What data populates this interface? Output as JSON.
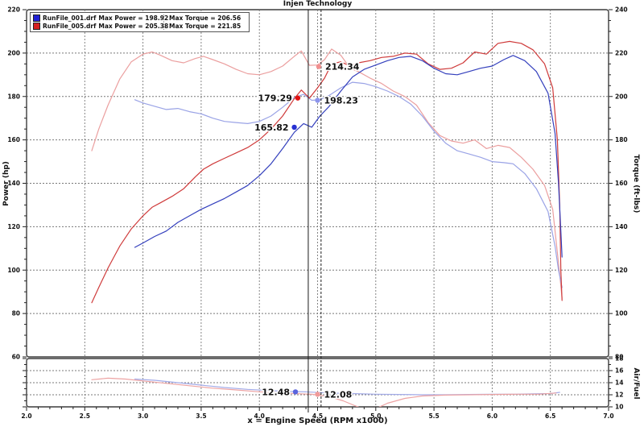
{
  "chart_data": {
    "type": "line",
    "title": "Injen Technology",
    "x_axis": {
      "title": "x = Engine Speed (RPM x1000)",
      "min": 2.0,
      "max": 7.0,
      "major": 0.5,
      "minor": 0.1
    },
    "main": {
      "left_axis": {
        "title": "Power (hp)",
        "min": 60,
        "max": 220,
        "major": 20,
        "minor": 5
      },
      "right_axis": {
        "title": "Torque (ft-lbs)",
        "min": 80,
        "max": 240,
        "major": 20,
        "minor": 5
      },
      "series": [
        {
          "name": "run2-torque-curve",
          "axis": "torque",
          "color": "#eb9f9f",
          "points": [
            [
              2.56,
              175
            ],
            [
              2.62,
              185
            ],
            [
              2.7,
              196
            ],
            [
              2.8,
              208
            ],
            [
              2.9,
              216
            ],
            [
              3.0,
              219.5
            ],
            [
              3.08,
              220.5
            ],
            [
              3.15,
              219
            ],
            [
              3.25,
              216.5
            ],
            [
              3.35,
              215.5
            ],
            [
              3.45,
              217.5
            ],
            [
              3.52,
              218.5
            ],
            [
              3.6,
              217
            ],
            [
              3.7,
              215
            ],
            [
              3.8,
              212.5
            ],
            [
              3.9,
              210.5
            ],
            [
              4.0,
              210
            ],
            [
              4.1,
              211.5
            ],
            [
              4.2,
              214
            ],
            [
              4.3,
              218.5
            ],
            [
              4.36,
              221
            ],
            [
              4.43,
              214.34
            ],
            [
              4.5,
              214.5
            ],
            [
              4.56,
              217
            ],
            [
              4.62,
              221.85
            ],
            [
              4.7,
              219
            ],
            [
              4.78,
              213
            ],
            [
              4.85,
              211.5
            ],
            [
              4.95,
              208.5
            ],
            [
              5.05,
              206
            ],
            [
              5.15,
              202.5
            ],
            [
              5.25,
              200
            ],
            [
              5.35,
              196
            ],
            [
              5.45,
              188
            ],
            [
              5.55,
              182
            ],
            [
              5.65,
              179.5
            ],
            [
              5.75,
              178.5
            ],
            [
              5.85,
              180
            ],
            [
              5.95,
              176
            ],
            [
              6.05,
              177.5
            ],
            [
              6.15,
              176.5
            ],
            [
              6.25,
              172
            ],
            [
              6.35,
              166.5
            ],
            [
              6.45,
              159
            ],
            [
              6.52,
              148
            ],
            [
              6.56,
              128
            ],
            [
              6.58,
              118
            ],
            [
              6.6,
              107
            ]
          ]
        },
        {
          "name": "run1-torque-curve",
          "axis": "torque",
          "color": "#9aa3e6",
          "points": [
            [
              2.93,
              198.5
            ],
            [
              3.0,
              197
            ],
            [
              3.1,
              195.5
            ],
            [
              3.2,
              194
            ],
            [
              3.3,
              194.5
            ],
            [
              3.4,
              193
            ],
            [
              3.5,
              192
            ],
            [
              3.6,
              190
            ],
            [
              3.7,
              188.5
            ],
            [
              3.8,
              188
            ],
            [
              3.9,
              187.5
            ],
            [
              4.0,
              188.5
            ],
            [
              4.1,
              191
            ],
            [
              4.2,
              195
            ],
            [
              4.3,
              199.5
            ],
            [
              4.38,
              201
            ],
            [
              4.45,
              198.23
            ],
            [
              4.52,
              198.5
            ],
            [
              4.6,
              200.5
            ],
            [
              4.7,
              204
            ],
            [
              4.8,
              206.56
            ],
            [
              4.9,
              206
            ],
            [
              5.0,
              204.5
            ],
            [
              5.1,
              202.5
            ],
            [
              5.2,
              200
            ],
            [
              5.3,
              196.5
            ],
            [
              5.4,
              191
            ],
            [
              5.5,
              184
            ],
            [
              5.6,
              178.5
            ],
            [
              5.7,
              175
            ],
            [
              5.8,
              173.5
            ],
            [
              5.9,
              172
            ],
            [
              6.0,
              170
            ],
            [
              6.1,
              169.5
            ],
            [
              6.18,
              169
            ],
            [
              6.28,
              164.5
            ],
            [
              6.38,
              157.5
            ],
            [
              6.48,
              147
            ],
            [
              6.54,
              131
            ],
            [
              6.57,
              120
            ],
            [
              6.6,
              112
            ]
          ]
        },
        {
          "name": "run2-power-curve",
          "axis": "power",
          "color": "#cf3b3b",
          "points": [
            [
              2.56,
              85
            ],
            [
              2.62,
              92
            ],
            [
              2.7,
              101
            ],
            [
              2.8,
              111
            ],
            [
              2.9,
              119
            ],
            [
              3.0,
              125
            ],
            [
              3.08,
              129
            ],
            [
              3.15,
              131
            ],
            [
              3.25,
              134
            ],
            [
              3.35,
              137.5
            ],
            [
              3.45,
              143
            ],
            [
              3.52,
              146.5
            ],
            [
              3.6,
              149
            ],
            [
              3.7,
              151.5
            ],
            [
              3.8,
              154
            ],
            [
              3.9,
              156.5
            ],
            [
              4.0,
              160
            ],
            [
              4.1,
              165
            ],
            [
              4.2,
              171
            ],
            [
              4.3,
              179
            ],
            [
              4.36,
              183
            ],
            [
              4.43,
              179.29
            ],
            [
              4.5,
              184
            ],
            [
              4.56,
              188.5
            ],
            [
              4.62,
              195
            ],
            [
              4.7,
              196
            ],
            [
              4.78,
              194
            ],
            [
              4.85,
              195.5
            ],
            [
              4.95,
              196.5
            ],
            [
              5.05,
              198
            ],
            [
              5.15,
              198.5
            ],
            [
              5.25,
              200
            ],
            [
              5.35,
              199.5
            ],
            [
              5.45,
              195
            ],
            [
              5.55,
              192.5
            ],
            [
              5.65,
              193
            ],
            [
              5.75,
              195.5
            ],
            [
              5.85,
              200.5
            ],
            [
              5.95,
              199.5
            ],
            [
              6.05,
              204.5
            ],
            [
              6.15,
              205.38
            ],
            [
              6.25,
              204.5
            ],
            [
              6.35,
              201.5
            ],
            [
              6.45,
              195
            ],
            [
              6.52,
              184
            ],
            [
              6.56,
              160
            ],
            [
              6.58,
              130
            ],
            [
              6.59,
              100
            ],
            [
              6.6,
              86
            ]
          ]
        },
        {
          "name": "run1-power-curve",
          "axis": "power",
          "color": "#3440bd",
          "points": [
            [
              2.93,
              110.5
            ],
            [
              3.0,
              112.5
            ],
            [
              3.1,
              115.5
            ],
            [
              3.2,
              118
            ],
            [
              3.3,
              122
            ],
            [
              3.4,
              125
            ],
            [
              3.5,
              128
            ],
            [
              3.6,
              130.5
            ],
            [
              3.7,
              133
            ],
            [
              3.8,
              136
            ],
            [
              3.9,
              139
            ],
            [
              4.0,
              143.5
            ],
            [
              4.1,
              149
            ],
            [
              4.2,
              156
            ],
            [
              4.3,
              163.5
            ],
            [
              4.38,
              167.5
            ],
            [
              4.45,
              165.82
            ],
            [
              4.52,
              171
            ],
            [
              4.6,
              175.5
            ],
            [
              4.7,
              182.5
            ],
            [
              4.8,
              189
            ],
            [
              4.9,
              192.5
            ],
            [
              5.0,
              194.5
            ],
            [
              5.1,
              196.5
            ],
            [
              5.2,
              198
            ],
            [
              5.3,
              198.5
            ],
            [
              5.4,
              196.5
            ],
            [
              5.5,
              193
            ],
            [
              5.6,
              190.5
            ],
            [
              5.7,
              190
            ],
            [
              5.8,
              191.5
            ],
            [
              5.9,
              193
            ],
            [
              6.0,
              194
            ],
            [
              6.1,
              197
            ],
            [
              6.18,
              198.92
            ],
            [
              6.28,
              196.5
            ],
            [
              6.38,
              191.5
            ],
            [
              6.48,
              181.5
            ],
            [
              6.54,
              163
            ],
            [
              6.57,
              140
            ],
            [
              6.59,
              118
            ],
            [
              6.6,
              106
            ]
          ]
        }
      ]
    },
    "af": {
      "right_axis": {
        "title": "Air/Fuel",
        "min": 10,
        "max": 18,
        "major": 2,
        "minor": 1
      },
      "series": [
        {
          "name": "run1-af-curve",
          "axis": "af",
          "color": "#a3abe8",
          "points": [
            [
              2.93,
              14.6
            ],
            [
              3.1,
              14.4
            ],
            [
              3.3,
              14.0
            ],
            [
              3.5,
              13.6
            ],
            [
              3.7,
              13.2
            ],
            [
              3.9,
              12.9
            ],
            [
              4.1,
              12.7
            ],
            [
              4.25,
              12.55
            ],
            [
              4.4,
              12.48
            ],
            [
              4.6,
              12.3
            ],
            [
              4.8,
              12.2
            ],
            [
              5.0,
              12.1
            ],
            [
              5.2,
              12.05
            ],
            [
              5.4,
              12.0
            ],
            [
              5.6,
              12.0
            ],
            [
              5.8,
              12.05
            ],
            [
              6.0,
              12.1
            ],
            [
              6.2,
              12.1
            ],
            [
              6.35,
              12.15
            ],
            [
              6.5,
              12.2
            ],
            [
              6.58,
              12.4
            ]
          ]
        },
        {
          "name": "run2-af-curve",
          "axis": "af",
          "color": "#eda3a3",
          "points": [
            [
              2.56,
              14.5
            ],
            [
              2.7,
              14.75
            ],
            [
              2.85,
              14.6
            ],
            [
              3.0,
              14.3
            ],
            [
              3.2,
              13.9
            ],
            [
              3.4,
              13.5
            ],
            [
              3.6,
              13.1
            ],
            [
              3.8,
              12.8
            ],
            [
              4.0,
              12.5
            ],
            [
              4.2,
              12.3
            ],
            [
              4.45,
              12.08
            ],
            [
              4.6,
              11.7
            ],
            [
              4.72,
              11.0
            ],
            [
              4.82,
              10.2
            ],
            [
              4.9,
              9.6
            ],
            [
              5.0,
              9.7
            ],
            [
              5.1,
              10.6
            ],
            [
              5.25,
              11.4
            ],
            [
              5.4,
              11.8
            ],
            [
              5.6,
              11.95
            ],
            [
              5.8,
              12.0
            ],
            [
              6.0,
              12.05
            ],
            [
              6.2,
              12.1
            ],
            [
              6.4,
              12.1
            ],
            [
              6.55,
              12.3
            ]
          ]
        }
      ]
    },
    "cursors": [
      {
        "rpm": 4.42,
        "style": "solid"
      },
      {
        "rpm": 4.53,
        "style": "dashed"
      }
    ],
    "markers": [
      {
        "rpm": 4.51,
        "axis": "torque",
        "value": 213.8,
        "color": "#f19090",
        "label": "214.34",
        "side": "right"
      },
      {
        "rpm": 4.33,
        "axis": "power",
        "value": 179.29,
        "color": "#e11212",
        "label": "179.29",
        "side": "left"
      },
      {
        "rpm": 4.5,
        "axis": "torque",
        "value": 198.23,
        "color": "#8d95ec",
        "label": "198.23",
        "side": "right"
      },
      {
        "rpm": 4.3,
        "axis": "power",
        "value": 165.82,
        "color": "#2731d2",
        "label": "165.82",
        "side": "left"
      },
      {
        "rpm": 4.31,
        "axis": "af",
        "value": 12.48,
        "color": "#5a64de",
        "label": "12.48",
        "side": "left"
      },
      {
        "rpm": 4.5,
        "axis": "af",
        "value": 12.08,
        "color": "#f09a9a",
        "label": "12.08",
        "side": "right"
      }
    ],
    "legend": {
      "rows": [
        {
          "file": "RunFile_001.drf",
          "color": "#2121d6",
          "power": "Max Power = 198.92",
          "torque": "Max Torque = 206.56"
        },
        {
          "file": "RunFile_005.drf",
          "color": "#d62121",
          "power": "Max Power = 205.38",
          "torque": "Max Torque = 221.85"
        }
      ]
    }
  }
}
